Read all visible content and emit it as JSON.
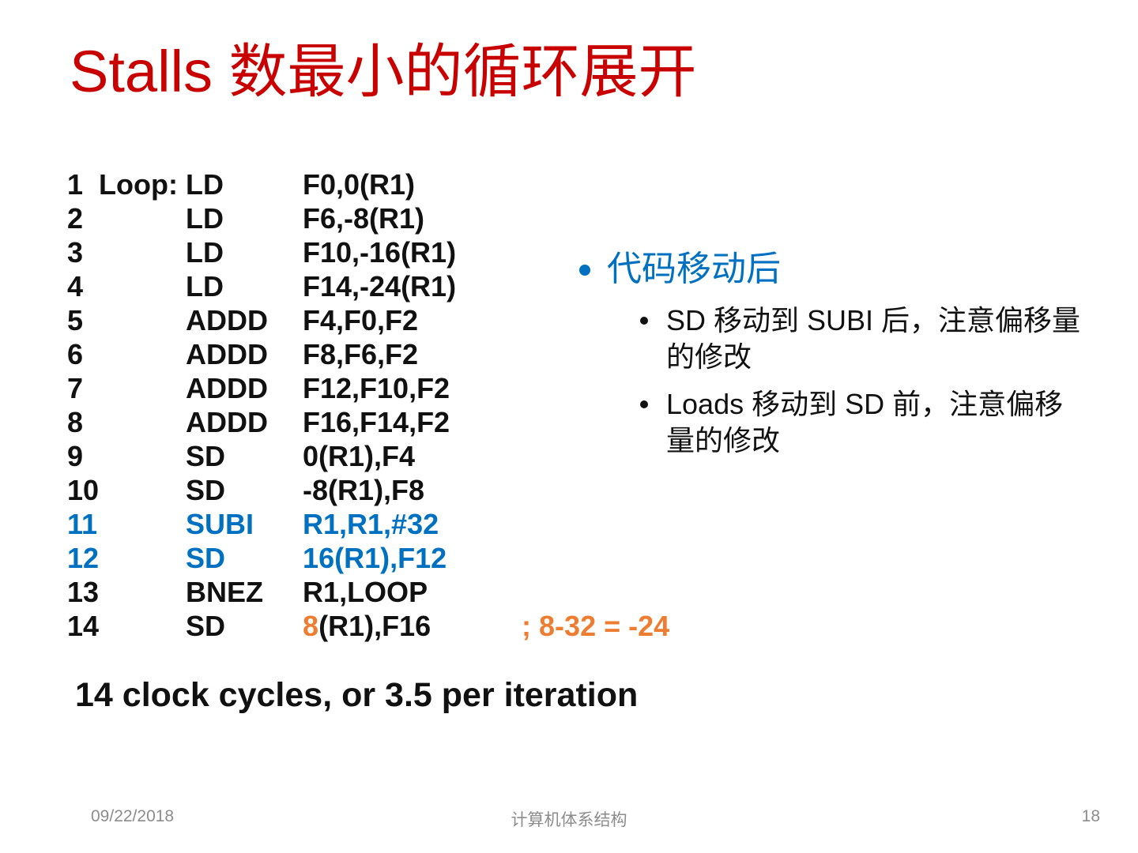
{
  "colors": {
    "title_red": "#C80000",
    "code_blue": "#0070C0",
    "accent_orange": "#ED7D31",
    "footer_gray": "#8C8C8C",
    "text_black": "#111111"
  },
  "title": "Stalls 数最小的循环展开",
  "code": {
    "lines": [
      {
        "num": "1",
        "label": "Loop:",
        "op": "LD",
        "args": "F0,0(R1)"
      },
      {
        "num": "2",
        "label": "",
        "op": "LD",
        "args": "F6,-8(R1)"
      },
      {
        "num": "3",
        "label": "",
        "op": "LD",
        "args": "F10,-16(R1)"
      },
      {
        "num": "4",
        "label": "",
        "op": "LD",
        "args": "F14,-24(R1)"
      },
      {
        "num": "5",
        "label": "",
        "op": "ADDD",
        "args": "F4,F0,F2"
      },
      {
        "num": "6",
        "label": "",
        "op": "ADDD",
        "args": "F8,F6,F2"
      },
      {
        "num": "7",
        "label": "",
        "op": "ADDD",
        "args": "F12,F10,F2"
      },
      {
        "num": "8",
        "label": "",
        "op": "ADDD",
        "args": "F16,F14,F2"
      },
      {
        "num": "9",
        "label": "",
        "op": "SD",
        "args": "0(R1),F4"
      },
      {
        "num": "10",
        "label": "",
        "op": "SD",
        "args": "-8(R1),F8"
      },
      {
        "num": "11",
        "label": "",
        "op": "SUBI",
        "args": "R1,R1,#32",
        "color": "blue"
      },
      {
        "num": "12",
        "label": "",
        "op": "SD",
        "args": "16(R1),F12",
        "color": "blue"
      },
      {
        "num": "13",
        "label": "",
        "op": "BNEZ",
        "args": "R1,LOOP"
      },
      {
        "num": "14",
        "label": "",
        "op": "SD",
        "args_highlight": "8",
        "args": "(R1),F16",
        "comment": "; 8-32 = -24"
      }
    ]
  },
  "notes": {
    "heading": "代码移动后",
    "items": [
      "SD 移动到 SUBI 后，注意偏移量的修改",
      "Loads 移动到 SD 前，注意偏移量的修改"
    ]
  },
  "summary": "14 clock cycles, or 3.5 per iteration",
  "footer": {
    "date": "09/22/2018",
    "course": "计算机体系结构",
    "page": "18"
  }
}
